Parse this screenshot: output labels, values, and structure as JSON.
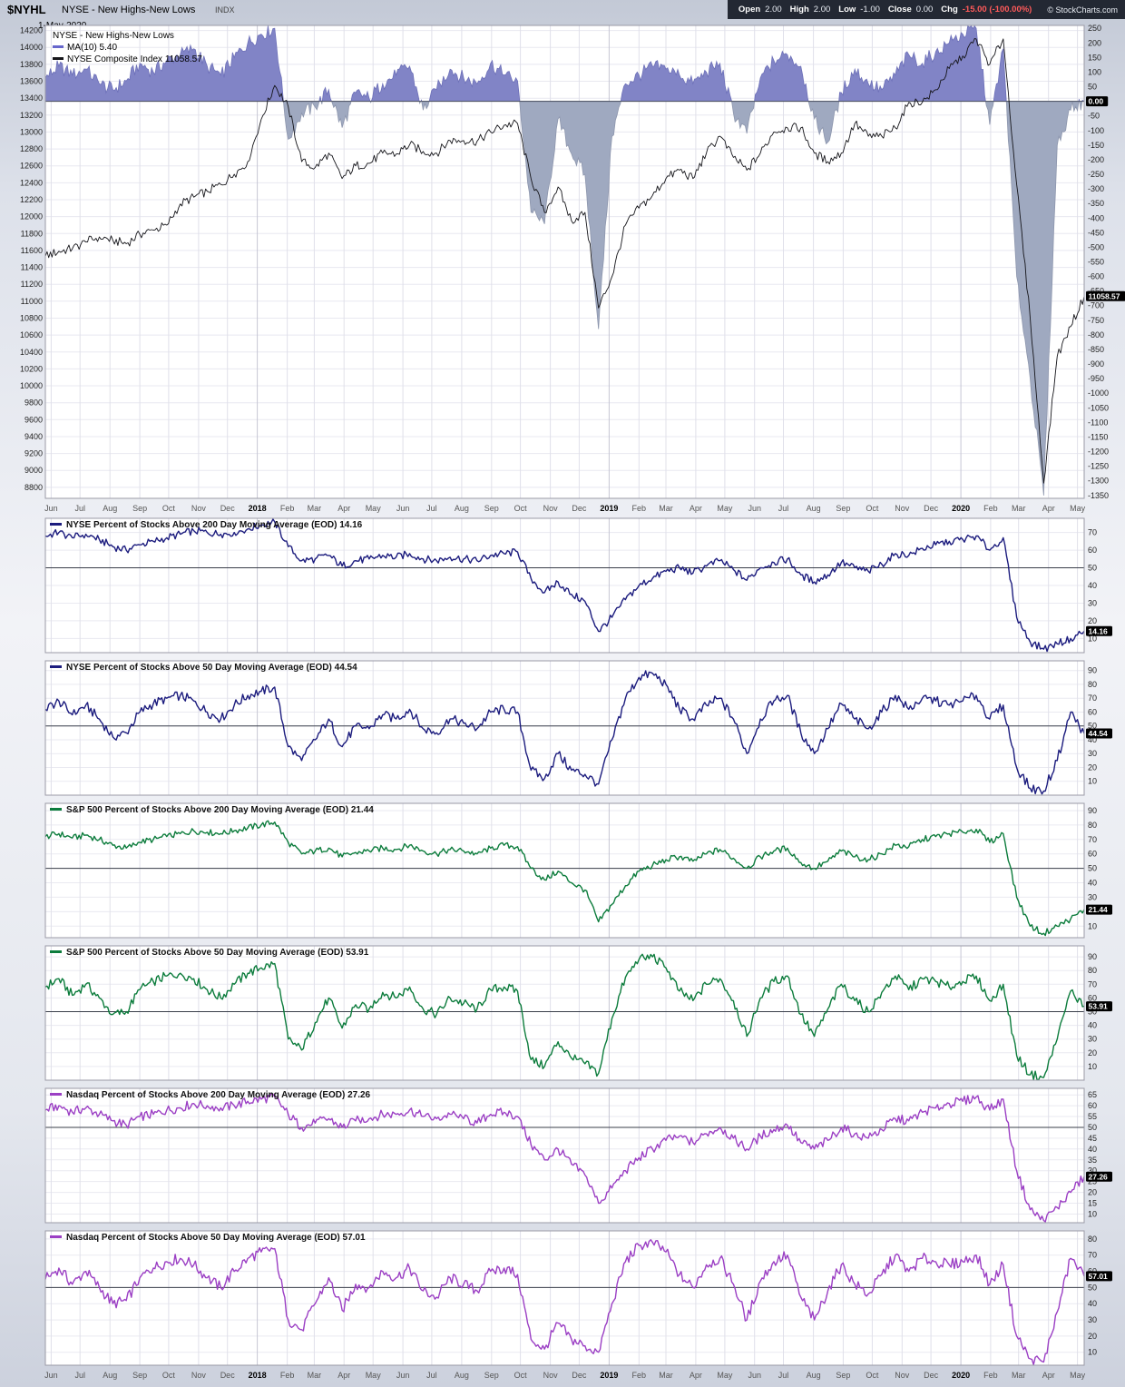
{
  "header": {
    "symbol": "$NYHL",
    "name": "NYSE - New Highs-New Lows",
    "exchange": "INDX",
    "date": "1-May-2020",
    "open_label": "Open",
    "open": "2.00",
    "high_label": "High",
    "high": "2.00",
    "low_label": "Low",
    "low": "-1.00",
    "close_label": "Close",
    "close": "0.00",
    "chg_label": "Chg",
    "chg": "-15.00 (-100.00%)",
    "copyright": "© StockCharts.com"
  },
  "legend": {
    "line1": "NYSE - New Highs-New Lows",
    "line2": "MA(10) 5.40",
    "line3": "NYSE Composite Index 11058.57"
  },
  "colors": {
    "area_positive": "#8184c6",
    "area_negative": "#9fa9c0",
    "candle": "#15151a",
    "ma": "#6666cc",
    "nyse_line": "#1c1c7e",
    "sp_line": "#0c7c3c",
    "nasdaq_line": "#9b3fc4",
    "badge_bg": "#000000",
    "badge_text": "#ffffff",
    "chg_negative": "#ff5a5a",
    "quote_strip_bg": "#232833"
  },
  "chart_data": {
    "x_axis": {
      "n_points": 78,
      "labels": [
        "Jun",
        "Jul",
        "Aug",
        "Sep",
        "Oct",
        "Nov",
        "Dec",
        "2018",
        "Feb",
        "Mar",
        "Apr",
        "May",
        "Jun",
        "Jul",
        "Aug",
        "Sep",
        "Oct",
        "Nov",
        "Dec",
        "2019",
        "Feb",
        "Mar",
        "Apr",
        "May",
        "Jun",
        "Jul",
        "Aug",
        "Sep",
        "Oct",
        "Nov",
        "Dec",
        "2020",
        "Feb",
        "Mar",
        "Apr",
        "May"
      ],
      "positions": [
        0.43,
        2.57,
        4.79,
        7.0,
        9.14,
        11.36,
        13.5,
        15.71,
        17.93,
        19.93,
        22.14,
        24.29,
        26.5,
        28.64,
        30.86,
        33.07,
        35.21,
        37.43,
        39.57,
        41.79,
        44.0,
        46.0,
        48.21,
        50.36,
        52.57,
        54.71,
        56.93,
        59.14,
        61.29,
        63.5,
        65.64,
        67.86,
        70.07,
        72.14,
        74.36,
        76.5
      ]
    },
    "main": {
      "type": "area+line",
      "title": "NYSE - New Highs-New Lows",
      "left_axis": {
        "min": 8670,
        "max": 14260,
        "tick_min": 8800,
        "tick_max": 14200,
        "tick_step": 200
      },
      "right_axis": {
        "min": -1360,
        "max": 260,
        "tick_min": -1350,
        "tick_max": 250,
        "tick_step": 50
      },
      "hline_right": 0,
      "last_values": {
        "nyhl": "0.00",
        "composite": "11058.57"
      },
      "series": [
        {
          "name": "NYSE New Highs-New Lows",
          "type": "area",
          "axis": "right",
          "values": [
            80,
            120,
            90,
            110,
            60,
            40,
            70,
            130,
            100,
            140,
            160,
            180,
            120,
            90,
            150,
            200,
            230,
            250,
            -130,
            -40,
            -20,
            40,
            -90,
            30,
            10,
            60,
            90,
            120,
            -30,
            40,
            110,
            80,
            60,
            130,
            90,
            70,
            -380,
            -420,
            -60,
            -180,
            -250,
            -780,
            -120,
            60,
            90,
            120,
            110,
            90,
            60,
            100,
            130,
            -40,
            -110,
            80,
            140,
            160,
            120,
            -60,
            -140,
            30,
            110,
            60,
            40,
            90,
            160,
            130,
            170,
            200,
            230,
            250,
            -80,
            180,
            -600,
            -950,
            -1350,
            -150,
            -30,
            0
          ]
        },
        {
          "name": "NYSE Composite Index",
          "type": "candlestick-line",
          "axis": "left",
          "values": [
            11530,
            11590,
            11620,
            11700,
            11760,
            11720,
            11680,
            11790,
            11840,
            11900,
            12150,
            12230,
            12300,
            12380,
            12500,
            12650,
            13150,
            13550,
            13300,
            12650,
            12580,
            12750,
            12450,
            12600,
            12630,
            12750,
            12740,
            12850,
            12770,
            12750,
            12900,
            12900,
            12890,
            13000,
            13080,
            13100,
            12450,
            12050,
            12350,
            11950,
            12050,
            10920,
            11290,
            11900,
            12100,
            12250,
            12450,
            12550,
            12450,
            12750,
            12950,
            12700,
            12550,
            12750,
            13000,
            13050,
            13050,
            12750,
            12650,
            12750,
            13100,
            12950,
            12950,
            13050,
            13350,
            13350,
            13500,
            13750,
            13900,
            14100,
            13800,
            14100,
            12380,
            10800,
            8850,
            10350,
            10700,
            11059
          ]
        }
      ]
    },
    "panels": [
      {
        "label": "NYSE Percent of Stocks Above 200 Day Moving Average (EOD) 14.16",
        "color": "#1c1c7e",
        "axis_min": 2,
        "axis_max": 78,
        "tick_min": 10,
        "tick_max": 70,
        "tick_step": 10,
        "hline": 50,
        "last_label": "14.16",
        "values": [
          68,
          70,
          67,
          69,
          66,
          62,
          60,
          63,
          65,
          67,
          69,
          71,
          70,
          69,
          70,
          72,
          74,
          76,
          62,
          54,
          55,
          57,
          51,
          54,
          55,
          57,
          56,
          58,
          55,
          54,
          56,
          55,
          54,
          57,
          58,
          59,
          44,
          36,
          42,
          35,
          31,
          14,
          22,
          32,
          40,
          44,
          48,
          50,
          47,
          51,
          54,
          49,
          43,
          50,
          53,
          55,
          46,
          42,
          46,
          53,
          50,
          48,
          52,
          58,
          57,
          61,
          63,
          65,
          66,
          68,
          60,
          67,
          22,
          8,
          4,
          7,
          10,
          14.16
        ]
      },
      {
        "label": "NYSE Percent of Stocks Above 50 Day Moving Average (EOD) 44.54",
        "color": "#1c1c7e",
        "axis_min": 0,
        "axis_max": 97,
        "tick_min": 10,
        "tick_max": 90,
        "tick_step": 10,
        "hline": 50,
        "last_label": "44.54",
        "values": [
          62,
          68,
          58,
          65,
          55,
          42,
          45,
          60,
          66,
          70,
          72,
          68,
          60,
          55,
          65,
          72,
          75,
          78,
          35,
          25,
          40,
          55,
          35,
          50,
          48,
          58,
          55,
          62,
          48,
          45,
          55,
          52,
          48,
          60,
          62,
          60,
          18,
          12,
          30,
          18,
          15,
          8,
          40,
          70,
          85,
          88,
          80,
          62,
          55,
          65,
          70,
          55,
          30,
          55,
          68,
          72,
          45,
          30,
          48,
          66,
          55,
          48,
          60,
          72,
          62,
          70,
          68,
          65,
          68,
          72,
          55,
          65,
          20,
          5,
          3,
          25,
          60,
          44.54
        ]
      },
      {
        "label": "S&P 500 Percent of Stocks Above 200 Day Moving Average (EOD) 21.44",
        "color": "#0c7c3c",
        "axis_min": 2,
        "axis_max": 95,
        "tick_min": 10,
        "tick_max": 90,
        "tick_step": 10,
        "hline": 50,
        "last_label": "21.44",
        "values": [
          72,
          74,
          71,
          73,
          70,
          66,
          64,
          68,
          70,
          72,
          74,
          76,
          75,
          74,
          76,
          78,
          80,
          82,
          68,
          60,
          62,
          64,
          58,
          61,
          62,
          64,
          63,
          66,
          62,
          60,
          63,
          62,
          60,
          64,
          66,
          65,
          50,
          42,
          48,
          40,
          35,
          13,
          25,
          38,
          48,
          52,
          56,
          58,
          55,
          60,
          63,
          57,
          50,
          58,
          62,
          64,
          54,
          50,
          55,
          62,
          58,
          56,
          60,
          66,
          65,
          70,
          72,
          74,
          75,
          77,
          68,
          74,
          30,
          10,
          5,
          10,
          15,
          21.44
        ]
      },
      {
        "label": "S&P 500 Percent of Stocks Above 50 Day Moving Average (EOD) 53.91",
        "color": "#0c7c3c",
        "axis_min": 0,
        "axis_max": 98,
        "tick_min": 10,
        "tick_max": 90,
        "tick_step": 10,
        "hline": 50,
        "last_label": "53.91",
        "values": [
          68,
          74,
          62,
          70,
          60,
          48,
          50,
          66,
          72,
          76,
          78,
          74,
          66,
          60,
          70,
          78,
          82,
          85,
          30,
          22,
          42,
          60,
          38,
          55,
          52,
          64,
          60,
          68,
          52,
          48,
          60,
          56,
          52,
          66,
          68,
          65,
          15,
          10,
          28,
          16,
          12,
          5,
          45,
          75,
          88,
          90,
          82,
          65,
          58,
          70,
          74,
          58,
          32,
          60,
          72,
          76,
          48,
          32,
          52,
          70,
          58,
          50,
          64,
          76,
          66,
          74,
          72,
          68,
          72,
          76,
          58,
          70,
          18,
          4,
          2,
          30,
          65,
          53.91
        ]
      },
      {
        "label": "Nasdaq Percent of Stocks Above 200 Day Moving Average (EOD) 27.26",
        "color": "#9b3fc4",
        "axis_min": 6,
        "axis_max": 68,
        "tick_min": 10,
        "tick_max": 65,
        "tick_step": 5,
        "hline": 50,
        "last_label": "27.26",
        "values": [
          58,
          60,
          57,
          59,
          56,
          53,
          51,
          55,
          56,
          58,
          59,
          61,
          60,
          59,
          60,
          62,
          63,
          64,
          56,
          50,
          52,
          54,
          50,
          53,
          54,
          56,
          56,
          58,
          55,
          54,
          56,
          54,
          52,
          56,
          57,
          55,
          42,
          35,
          40,
          33,
          28,
          15,
          22,
          30,
          36,
          40,
          44,
          46,
          43,
          47,
          50,
          45,
          40,
          46,
          49,
          51,
          43,
          40,
          44,
          50,
          47,
          45,
          49,
          54,
          53,
          57,
          59,
          61,
          62,
          64,
          58,
          63,
          30,
          12,
          7,
          13,
          20,
          27.26
        ]
      },
      {
        "label": "Nasdaq Percent of Stocks Above 50 Day Moving Average (EOD) 57.01",
        "color": "#9b3fc4",
        "axis_min": 2,
        "axis_max": 85,
        "tick_min": 10,
        "tick_max": 80,
        "tick_step": 10,
        "hline": 50,
        "last_label": "57.01",
        "values": [
          55,
          62,
          52,
          60,
          50,
          40,
          42,
          56,
          62,
          66,
          68,
          64,
          56,
          50,
          60,
          68,
          72,
          74,
          30,
          24,
          40,
          56,
          36,
          52,
          50,
          60,
          56,
          62,
          48,
          44,
          56,
          52,
          48,
          60,
          62,
          58,
          18,
          12,
          28,
          18,
          14,
          10,
          40,
          66,
          76,
          78,
          72,
          58,
          50,
          64,
          68,
          52,
          30,
          54,
          66,
          70,
          44,
          30,
          48,
          64,
          52,
          46,
          58,
          70,
          60,
          68,
          66,
          64,
          66,
          70,
          52,
          64,
          20,
          6,
          4,
          35,
          68,
          57.01
        ]
      }
    ]
  }
}
